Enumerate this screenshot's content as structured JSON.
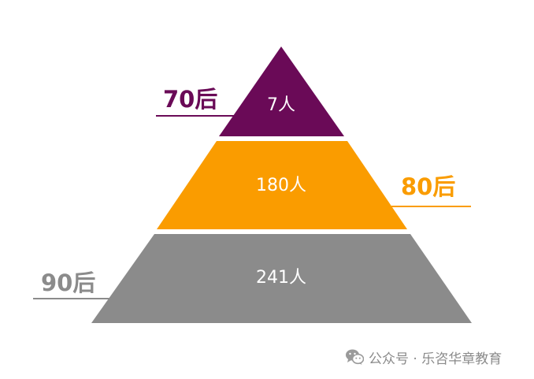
{
  "tiers": [
    {
      "generation": "70后",
      "count": "7人",
      "color": "#6a0a57"
    },
    {
      "generation": "80后",
      "count": "180人",
      "color": "#fa9c00"
    },
    {
      "generation": "90后",
      "count": "241人",
      "color": "#8b8b8b"
    }
  ],
  "watermark": {
    "icon": "wechat-icon",
    "text": "公众号 · 乐咨华章教育"
  }
}
